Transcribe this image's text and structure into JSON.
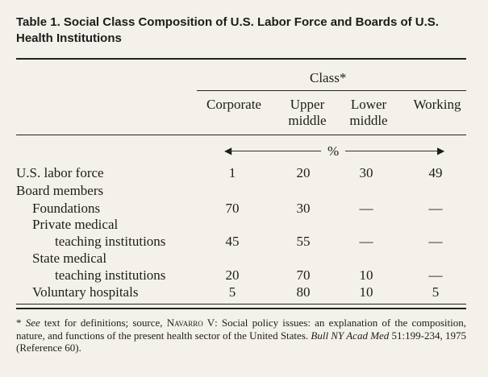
{
  "title": "Table 1. Social Class Composition of U.S. Labor Force and Boards of U.S. Health Institutions",
  "class_header": "Class*",
  "columns": [
    {
      "line1": "Corporate",
      "line2": ""
    },
    {
      "line1": "Upper",
      "line2": "middle"
    },
    {
      "line1": "Lower",
      "line2": "middle"
    },
    {
      "line1": "Working",
      "line2": ""
    }
  ],
  "percent_symbol": "%",
  "rows": [
    {
      "label": "U.S. labor force",
      "values": [
        "1",
        "20",
        "30",
        "49"
      ]
    },
    {
      "label": "Board members",
      "values": [
        "",
        "",
        "",
        ""
      ]
    },
    {
      "label": "Foundations",
      "values": [
        "70",
        "30",
        "—",
        "—"
      ]
    },
    {
      "label": "Private medical",
      "values": [
        "",
        "",
        "",
        ""
      ]
    },
    {
      "label": "teaching institutions",
      "values": [
        "45",
        "55",
        "—",
        "—"
      ]
    },
    {
      "label": "State medical",
      "values": [
        "",
        "",
        "",
        ""
      ]
    },
    {
      "label": "teaching institutions",
      "values": [
        "20",
        "70",
        "10",
        "—"
      ]
    },
    {
      "label": "Voluntary hospitals",
      "values": [
        "5",
        "80",
        "10",
        "5"
      ]
    }
  ],
  "footnote": {
    "marker": "* ",
    "see": "See",
    "text1": " text for definitions; source, ",
    "author": "Navarro V",
    "text2": ": Social policy issues: an explanation of the composition, nature, and functions of the present health sector of the United States. ",
    "journal": "Bull NY Acad Med",
    "text3": " 51:199-234, 1975 (Reference 60)."
  }
}
